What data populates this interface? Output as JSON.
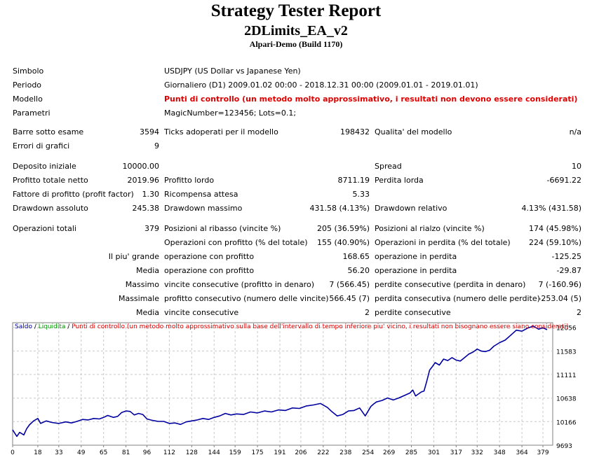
{
  "report": {
    "title": "Strategy Tester Report",
    "ea_name": "2DLimits_EA_v2",
    "server": "Alpari-Demo (Build 1170)"
  },
  "info": [
    {
      "label": "Simbolo",
      "value": "USDJPY (US Dollar vs Japanese Yen)",
      "red": false
    },
    {
      "label": "Periodo",
      "value": "Giornaliero (D1) 2009.01.02 00:00 - 2018.12.31 00:00 (2009.01.01 - 2019.01.01)",
      "red": false
    },
    {
      "label": "Modello",
      "value": "Punti di controllo (un metodo molto approssimativo, i resultati non devono essere considerati)",
      "red": true
    },
    {
      "label": "Parametri",
      "value": "MagicNumber=123456; Lots=0.1;",
      "red": false
    }
  ],
  "stats": {
    "bars_label": "Barre sotto esame",
    "bars_value": "3594",
    "ticks_label": "Ticks adoperati per il modello",
    "ticks_value": "198432",
    "quality_label": "Qualita' del modello",
    "quality_value": "n/a",
    "errors_label": "Errori di grafici",
    "errors_value": "9",
    "deposit_label": "Deposito iniziale",
    "deposit_value": "10000.00",
    "spread_label": "Spread",
    "spread_value": "10",
    "net_label": "Profitto totale netto",
    "net_value": "2019.96",
    "gross_profit_label": "Profitto lordo",
    "gross_profit_value": "8711.19",
    "gross_loss_label": "Perdita lorda",
    "gross_loss_value": "-6691.22",
    "pf_label": "Fattore di profitto (profit factor)",
    "pf_value": "1.30",
    "expected_label": "Ricompensa attesa",
    "expected_value": "5.33",
    "dd_abs_label": "Drawdown assoluto",
    "dd_abs_value": "245.38",
    "dd_max_label": "Drawdown massimo",
    "dd_max_value": "431.58 (4.13%)",
    "dd_rel_label": "Drawdown relativo",
    "dd_rel_value": "4.13% (431.58)",
    "ops_label": "Operazioni totali",
    "ops_value": "379",
    "short_label": "Posizioni al ribasso (vincite %)",
    "short_value": "205 (36.59%)",
    "long_label": "Posizioni al rialzo (vincite %)",
    "long_value": "174 (45.98%)",
    "profit_ops_label": "Operazioni con profitto (% del totale)",
    "profit_ops_value": "155 (40.90%)",
    "loss_ops_label": "Operazioni in perdita (% del totale)",
    "loss_ops_value": "224 (59.10%)",
    "largest_label": "Il piu' grande",
    "largest_profit_label": "operazione con profitto",
    "largest_profit_value": "168.65",
    "largest_loss_label": "operazione in perdita",
    "largest_loss_value": "-125.25",
    "average_label": "Media",
    "avg_profit_label": "operazione con profitto",
    "avg_profit_value": "56.20",
    "avg_loss_label": "operazione in perdita",
    "avg_loss_value": "-29.87",
    "maximum_label": "Massimo",
    "max_wins_label": "vincite consecutive (profitto in denaro)",
    "max_wins_value": "7 (566.45)",
    "max_losses_label": "perdite consecutive (perdita in denaro)",
    "max_losses_value": "7 (-160.96)",
    "maximal_label": "Massimale",
    "maximal_profit_label": "profitto consecutivo (numero delle vincite)",
    "maximal_profit_value": "566.45 (7)",
    "maximal_loss_label": "perdita consecutiva (numero delle perdite)",
    "maximal_loss_value": "-253.04 (5)",
    "avg2_label": "Media",
    "avg_wins_label": "vincite consecutive",
    "avg_wins_value": "2",
    "avg_losses_label": "perdite consecutive",
    "avg_losses_value": "2"
  },
  "legend": {
    "balance": "Saldo",
    "sep1": " / ",
    "equity": "Liquidita",
    "sep2": " / ",
    "model": "Punti di controllo (un metodo molto approssimativo sulla base dell'intervallo di tempo inferiore piu' vicino, i resultati non bisognano essere siano considerati)"
  },
  "colors": {
    "balance": "#0000a0",
    "equity": "#00a000",
    "warning": "#e00000",
    "grid": "#c8c8c8"
  },
  "chart_data": {
    "type": "line",
    "x_ticks": [
      0,
      18,
      33,
      49,
      65,
      81,
      96,
      112,
      128,
      144,
      159,
      175,
      191,
      206,
      222,
      238,
      254,
      269,
      285,
      301,
      317,
      332,
      348,
      364,
      379
    ],
    "y_ticks": [
      9693,
      10166,
      10638,
      11111,
      11583,
      12056
    ],
    "ylim": [
      9693,
      12150
    ],
    "xlim": [
      0,
      386
    ],
    "series": [
      {
        "name": "Saldo",
        "x": [
          0,
          3,
          5,
          8,
          10,
          12,
          15,
          18,
          20,
          24,
          28,
          33,
          38,
          42,
          46,
          50,
          54,
          58,
          62,
          65,
          68,
          72,
          75,
          78,
          81,
          84,
          87,
          90,
          93,
          96,
          100,
          104,
          108,
          112,
          116,
          120,
          124,
          128,
          132,
          136,
          140,
          144,
          148,
          152,
          156,
          160,
          165,
          170,
          175,
          180,
          185,
          190,
          195,
          200,
          205,
          210,
          215,
          220,
          225,
          228,
          232,
          236,
          240,
          244,
          248,
          252,
          256,
          258,
          260,
          264,
          268,
          272,
          276,
          280,
          284,
          286,
          288,
          290,
          292,
          294,
          296,
          298,
          300,
          302,
          305,
          308,
          311,
          314,
          317,
          320,
          323,
          326,
          329,
          332,
          335,
          338,
          341,
          344,
          348,
          352,
          356,
          360,
          364,
          368,
          372,
          376,
          379,
          382
        ],
        "values": [
          10000,
          9870,
          9950,
          9900,
          10020,
          10100,
          10180,
          10230,
          10130,
          10180,
          10150,
          10130,
          10160,
          10140,
          10170,
          10210,
          10200,
          10230,
          10220,
          10250,
          10290,
          10250,
          10270,
          10350,
          10380,
          10370,
          10300,
          10330,
          10310,
          10220,
          10190,
          10170,
          10170,
          10130,
          10140,
          10110,
          10160,
          10180,
          10200,
          10230,
          10210,
          10250,
          10280,
          10330,
          10300,
          10320,
          10310,
          10360,
          10340,
          10380,
          10360,
          10400,
          10390,
          10440,
          10430,
          10480,
          10500,
          10530,
          10450,
          10370,
          10280,
          10310,
          10380,
          10390,
          10440,
          10280,
          10470,
          10520,
          10560,
          10590,
          10640,
          10600,
          10640,
          10690,
          10740,
          10800,
          10680,
          10720,
          10760,
          10780,
          10980,
          11200,
          11270,
          11350,
          11300,
          11420,
          11390,
          11450,
          11400,
          11380,
          11450,
          11520,
          11560,
          11620,
          11580,
          11570,
          11600,
          11680,
          11750,
          11800,
          11900,
          12000,
          11980,
          12040,
          12080,
          12020,
          12050,
          12010
        ]
      }
    ]
  }
}
